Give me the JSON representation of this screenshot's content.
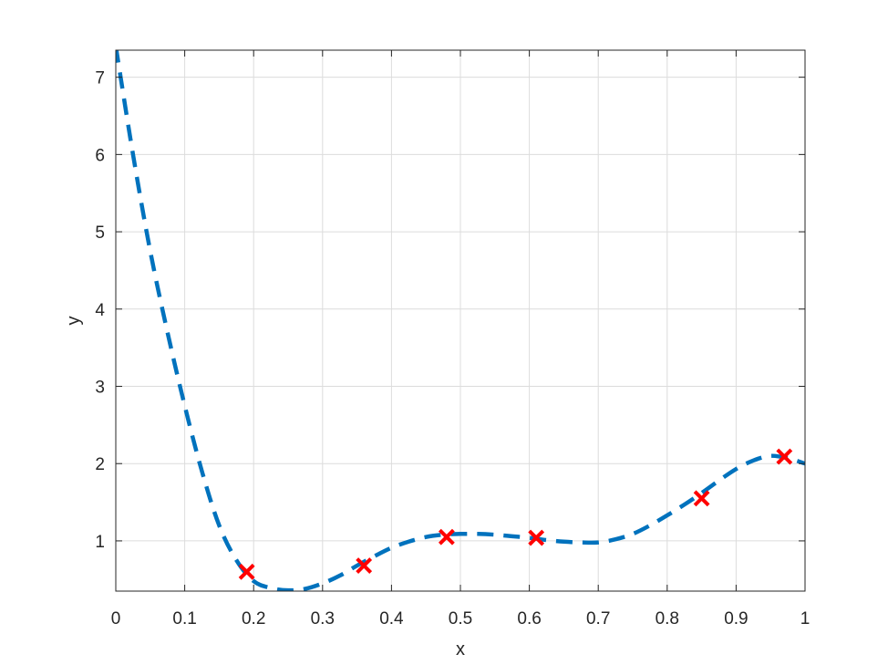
{
  "chart_data": {
    "type": "line",
    "title": "",
    "xlabel": "x",
    "ylabel": "y",
    "xlim": [
      0,
      1
    ],
    "ylim": [
      0.35,
      7.35
    ],
    "xticks": [
      0,
      0.1,
      0.2,
      0.3,
      0.4,
      0.5,
      0.6,
      0.7,
      0.8,
      0.9,
      1
    ],
    "xtick_labels": [
      "0",
      "0.1",
      "0.2",
      "0.3",
      "0.4",
      "0.5",
      "0.6",
      "0.7",
      "0.8",
      "0.9",
      "1"
    ],
    "yticks": [
      1,
      2,
      3,
      4,
      5,
      6,
      7
    ],
    "ytick_labels": [
      "1",
      "2",
      "3",
      "4",
      "5",
      "6",
      "7"
    ],
    "grid": true,
    "legend": "none",
    "series": [
      {
        "style": "dashed-line",
        "color": "#0072BD",
        "x": [
          0,
          0.025,
          0.05,
          0.075,
          0.1,
          0.125,
          0.15,
          0.175,
          0.2,
          0.225,
          0.25,
          0.275,
          0.3,
          0.325,
          0.35,
          0.375,
          0.4,
          0.425,
          0.45,
          0.475,
          0.5,
          0.525,
          0.55,
          0.575,
          0.6,
          0.625,
          0.65,
          0.675,
          0.7,
          0.725,
          0.75,
          0.775,
          0.8,
          0.825,
          0.85,
          0.875,
          0.9,
          0.925,
          0.95,
          0.975,
          1
        ],
        "y": [
          7.4,
          6.0,
          4.75,
          3.7,
          2.75,
          1.9,
          1.2,
          0.75,
          0.48,
          0.39,
          0.36,
          0.38,
          0.45,
          0.55,
          0.68,
          0.8,
          0.91,
          0.99,
          1.05,
          1.08,
          1.09,
          1.09,
          1.08,
          1.06,
          1.04,
          1.01,
          0.99,
          0.98,
          0.98,
          1.02,
          1.09,
          1.2,
          1.33,
          1.47,
          1.62,
          1.78,
          1.93,
          2.04,
          2.1,
          2.07,
          2.0
        ]
      },
      {
        "style": "markers-x",
        "color": "#FF0000",
        "x": [
          0.19,
          0.36,
          0.48,
          0.61,
          0.85,
          0.97
        ],
        "y": [
          0.6,
          0.68,
          1.05,
          1.04,
          1.55,
          2.09
        ]
      }
    ]
  }
}
